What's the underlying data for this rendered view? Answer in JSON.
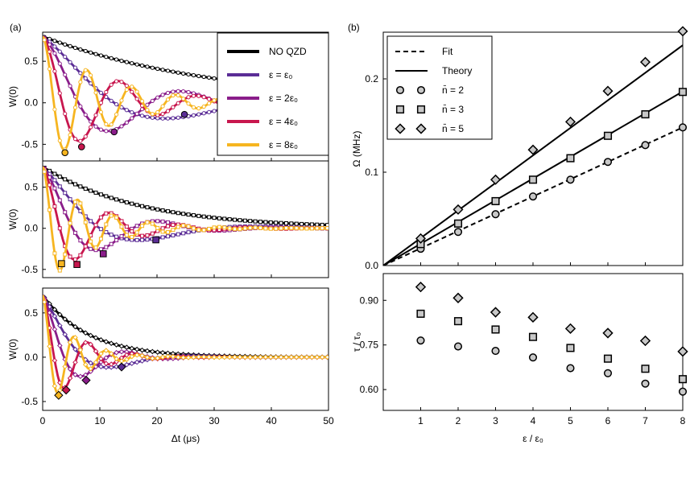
{
  "panel_labels": {
    "a": "(a)",
    "b": "(b)"
  },
  "colors": {
    "no_qzd": "#000000",
    "e1": "#5b2d96",
    "e2": "#8a1d8a",
    "e4": "#c8174e",
    "e8": "#f6b520"
  },
  "chart_data": [
    {
      "type": "line",
      "panel": "a-top",
      "xlabel": "",
      "ylabel": "W(0)",
      "xlim": [
        0,
        50
      ],
      "ylim": [
        -0.7,
        0.85
      ],
      "yticks": [
        "0.5",
        "0.0",
        "-0.5"
      ],
      "yticks_values": [
        0.5,
        0.0,
        -0.5
      ],
      "marker": "circle",
      "legend": [
        "NO QZD",
        "ε = ε₀",
        "ε = 2ε₀",
        "ε = 4ε₀",
        "ε = 8ε₀"
      ],
      "series": [
        {
          "name": "NO QZD",
          "A": 0.8,
          "tau": 30,
          "T": 0,
          "phi": 0
        },
        {
          "name": "ε = ε₀",
          "A": 0.8,
          "tau": 16,
          "T": 50,
          "phi": 0
        },
        {
          "name": "ε = 2ε₀",
          "A": 0.8,
          "tau": 14,
          "T": 25,
          "phi": 0
        },
        {
          "name": "ε = 4ε₀",
          "A": 0.8,
          "tau": 12,
          "T": 13.6,
          "phi": 0
        },
        {
          "name": "ε = 8ε₀",
          "A": 0.8,
          "tau": 11,
          "T": 7.8,
          "phi": 0
        }
      ],
      "minima": [
        {
          "x": 3.9,
          "y": -0.6,
          "series": 4
        },
        {
          "x": 6.8,
          "y": -0.53,
          "series": 3
        },
        {
          "x": 12.5,
          "y": -0.35,
          "series": 2
        },
        {
          "x": 24.8,
          "y": -0.14,
          "series": 1
        }
      ]
    },
    {
      "type": "line",
      "panel": "a-middle",
      "xlabel": "",
      "ylabel": "W(0)",
      "xlim": [
        0,
        50
      ],
      "ylim": [
        -0.6,
        0.82
      ],
      "yticks": [
        "0.5",
        "0.0",
        "-0.5"
      ],
      "yticks_values": [
        0.5,
        0.0,
        -0.5
      ],
      "marker": "square",
      "series": [
        {
          "name": "NO QZD",
          "A": 0.75,
          "tau": 17,
          "T": 0,
          "phi": 0
        },
        {
          "name": "ε = ε₀",
          "A": 0.75,
          "tau": 11,
          "T": 40,
          "phi": 0
        },
        {
          "name": "ε = 2ε₀",
          "A": 0.75,
          "tau": 9.5,
          "T": 21,
          "phi": 0
        },
        {
          "name": "ε = 4ε₀",
          "A": 0.75,
          "tau": 8.5,
          "T": 12,
          "phi": 0
        },
        {
          "name": "ε = 8ε₀",
          "A": 0.75,
          "tau": 8,
          "T": 6.2,
          "phi": 0
        }
      ],
      "minima": [
        {
          "x": 3.3,
          "y": -0.43,
          "series": 4
        },
        {
          "x": 6.0,
          "y": -0.44,
          "series": 3
        },
        {
          "x": 10.6,
          "y": -0.31,
          "series": 2
        },
        {
          "x": 19.8,
          "y": -0.14,
          "series": 1
        }
      ]
    },
    {
      "type": "line",
      "panel": "a-bottom",
      "xlabel": "Δt (μs)",
      "ylabel": "W(0)",
      "xlim": [
        0,
        50
      ],
      "xticks": [
        "0",
        "10",
        "20",
        "30",
        "40",
        "50"
      ],
      "xticks_values": [
        0,
        10,
        20,
        30,
        40,
        50
      ],
      "ylim": [
        -0.6,
        0.78
      ],
      "yticks": [
        "0.5",
        "0.0",
        "-0.5"
      ],
      "yticks_values": [
        0.5,
        0.0,
        -0.5
      ],
      "marker": "diamond",
      "series": [
        {
          "name": "NO QZD",
          "A": 0.7,
          "tau": 8,
          "T": 0,
          "phi": 0
        },
        {
          "name": "ε = ε₀",
          "A": 0.7,
          "tau": 7,
          "T": 28,
          "phi": 0
        },
        {
          "name": "ε = 2ε₀",
          "A": 0.7,
          "tau": 6,
          "T": 15,
          "phi": 0
        },
        {
          "name": "ε = 4ε₀",
          "A": 0.7,
          "tau": 5.5,
          "T": 8,
          "phi": 0
        },
        {
          "name": "ε = 8ε₀",
          "A": 0.7,
          "tau": 5,
          "T": 5.6,
          "phi": 0
        }
      ],
      "minima": [
        {
          "x": 2.8,
          "y": -0.43,
          "series": 4
        },
        {
          "x": 4.1,
          "y": -0.37,
          "series": 3
        },
        {
          "x": 7.6,
          "y": -0.26,
          "series": 2
        },
        {
          "x": 13.8,
          "y": -0.11,
          "series": 1
        }
      ]
    },
    {
      "type": "line",
      "panel": "b-top",
      "xlabel": "",
      "ylabel": "Ω (MHz)",
      "xlim": [
        0,
        8
      ],
      "ylim": [
        0,
        0.25
      ],
      "yticks": [
        "0.0",
        "0.1",
        "0.2"
      ],
      "yticks_values": [
        0.0,
        0.1,
        0.2
      ],
      "legend": [
        "Fit",
        "Theory",
        "n̄ = 2",
        "n̄ = 3",
        "n̄ = 5"
      ],
      "lines": [
        {
          "name": "Fit",
          "style": "dashed",
          "slope": 0.0185
        },
        {
          "name": "Theory",
          "style": "solid",
          "slope": 0.0233
        },
        {
          "name": "Theory",
          "style": "solid",
          "slope": 0.0295
        }
      ],
      "series": [
        {
          "name": "n̄ = 2",
          "marker": "circle",
          "x": [
            1,
            2,
            3,
            4,
            5,
            6,
            7,
            8
          ],
          "values": [
            0.018,
            0.036,
            0.055,
            0.074,
            0.092,
            0.111,
            0.129,
            0.148
          ]
        },
        {
          "name": "n̄ = 3",
          "marker": "square",
          "x": [
            1,
            2,
            3,
            4,
            5,
            6,
            7,
            8
          ],
          "values": [
            0.023,
            0.045,
            0.069,
            0.092,
            0.115,
            0.139,
            0.162,
            0.186
          ]
        },
        {
          "name": "n̄ = 5",
          "marker": "diamond",
          "x": [
            1,
            2,
            3,
            4,
            5,
            6,
            7,
            8
          ],
          "values": [
            0.029,
            0.06,
            0.092,
            0.124,
            0.154,
            0.187,
            0.218,
            0.251
          ]
        }
      ]
    },
    {
      "type": "scatter",
      "panel": "b-bottom",
      "xlabel": "ε / ε₀",
      "ylabel": "τ / τ₀",
      "xlim": [
        0,
        8
      ],
      "xticks": [
        "1",
        "2",
        "3",
        "4",
        "5",
        "6",
        "7",
        "8"
      ],
      "xticks_values": [
        1,
        2,
        3,
        4,
        5,
        6,
        7,
        8
      ],
      "ylim": [
        0.53,
        0.99
      ],
      "yticks": [
        "0.90",
        "0.75",
        "0.60"
      ],
      "yticks_values": [
        0.9,
        0.75,
        0.6
      ],
      "series": [
        {
          "name": "n̄ = 2",
          "marker": "circle",
          "x": [
            1,
            2,
            3,
            4,
            5,
            6,
            7,
            8
          ],
          "values": [
            0.765,
            0.745,
            0.73,
            0.708,
            0.672,
            0.655,
            0.62,
            0.593
          ]
        },
        {
          "name": "n̄ = 3",
          "marker": "square",
          "x": [
            1,
            2,
            3,
            4,
            5,
            6,
            7,
            8
          ],
          "values": [
            0.855,
            0.83,
            0.802,
            0.777,
            0.74,
            0.704,
            0.67,
            0.635
          ]
        },
        {
          "name": "n̄ = 5",
          "marker": "diamond",
          "x": [
            1,
            2,
            3,
            4,
            5,
            6,
            7,
            8
          ],
          "values": [
            0.945,
            0.908,
            0.86,
            0.843,
            0.805,
            0.79,
            0.764,
            0.728
          ]
        }
      ]
    }
  ]
}
